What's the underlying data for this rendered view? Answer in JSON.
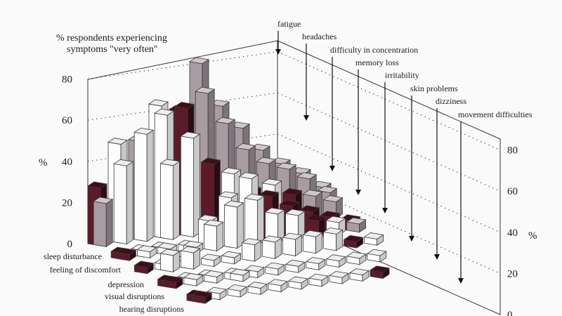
{
  "chart_data": {
    "type": "bar",
    "title": "% respondents  experiencing",
    "subtitle": "symptoms  \"very often\"",
    "ylabel": "%",
    "ylabel_right": "%",
    "ylim": [
      0,
      80
    ],
    "yticks": [
      0,
      20,
      40,
      60,
      80
    ],
    "yticks_right": [
      0,
      20,
      40,
      60,
      80
    ],
    "grid": true,
    "categories": [
      "sleep disturbance",
      "feeling of discomfort",
      "depression",
      "visual disruptions",
      "hearing disruptions"
    ],
    "symptoms": [
      "fatigue",
      "headaches",
      "difficulty in concentration",
      "memory loss",
      "irritability",
      "skin problems",
      "dizziness",
      "movement difficulties"
    ],
    "bars": [
      {
        "group": 0,
        "row": 0,
        "col": 0,
        "value": 28,
        "tone": "dark"
      },
      {
        "group": 0,
        "row": 0,
        "col": 1,
        "value": 21,
        "tone": "gray"
      },
      {
        "group": 0,
        "row": 1,
        "col": 1,
        "value": 3,
        "tone": "dark"
      },
      {
        "group": 0,
        "row": 1,
        "col": 2,
        "value": 3,
        "tone": "dark"
      },
      {
        "group": 0,
        "row": 2,
        "col": 2,
        "value": 3,
        "tone": "dark"
      },
      {
        "group": 0,
        "row": 3,
        "col": 3,
        "value": 3,
        "tone": "dark"
      },
      {
        "group": 0,
        "row": 3,
        "col": 4,
        "value": 3,
        "tone": "dark"
      },
      {
        "group": 0,
        "row": 4,
        "col": 5,
        "value": 3,
        "tone": "dark"
      },
      {
        "group": 0,
        "row": 4,
        "col": 6,
        "value": 3,
        "tone": "dark"
      },
      {
        "group": 1,
        "row": 0,
        "col": 0,
        "value": 48,
        "tone": "white"
      },
      {
        "group": 1,
        "row": 0,
        "col": 1,
        "value": 38,
        "tone": "white"
      },
      {
        "group": 1,
        "row": 1,
        "col": 1,
        "value": 3,
        "tone": "white"
      },
      {
        "group": 1,
        "row": 1,
        "col": 2,
        "value": 3,
        "tone": "white"
      },
      {
        "group": 1,
        "row": 2,
        "col": 2,
        "value": 3,
        "tone": "white"
      },
      {
        "group": 1,
        "row": 2,
        "col": 3,
        "value": 8,
        "tone": "white"
      },
      {
        "group": 1,
        "row": 3,
        "col": 3,
        "value": 3,
        "tone": "white"
      },
      {
        "group": 1,
        "row": 3,
        "col": 4,
        "value": 3,
        "tone": "white"
      },
      {
        "group": 1,
        "row": 4,
        "col": 5,
        "value": 3,
        "tone": "white"
      },
      {
        "group": 2,
        "row": 0,
        "col": 0,
        "value": 48,
        "tone": "gray"
      },
      {
        "group": 2,
        "row": 0,
        "col": 1,
        "value": 52,
        "tone": "white"
      },
      {
        "group": 2,
        "row": 1,
        "col": 1,
        "value": 3,
        "tone": "white"
      },
      {
        "group": 2,
        "row": 1,
        "col": 2,
        "value": 3,
        "tone": "white"
      },
      {
        "group": 2,
        "row": 2,
        "col": 2,
        "value": 3,
        "tone": "white"
      },
      {
        "group": 2,
        "row": 2,
        "col": 3,
        "value": 8,
        "tone": "white"
      },
      {
        "group": 2,
        "row": 3,
        "col": 3,
        "value": 3,
        "tone": "white"
      },
      {
        "group": 2,
        "row": 3,
        "col": 4,
        "value": 3,
        "tone": "white"
      },
      {
        "group": 2,
        "row": 4,
        "col": 5,
        "value": 3,
        "tone": "white"
      },
      {
        "group": 3,
        "row": 0,
        "col": 0,
        "value": 64,
        "tone": "white"
      },
      {
        "group": 3,
        "row": 0,
        "col": 1,
        "value": 60,
        "tone": "white"
      },
      {
        "group": 3,
        "row": 0,
        "col": 2,
        "value": 36,
        "tone": "white"
      },
      {
        "group": 3,
        "row": 1,
        "col": 2,
        "value": 3,
        "tone": "white"
      },
      {
        "group": 3,
        "row": 1,
        "col": 3,
        "value": 3,
        "tone": "white"
      },
      {
        "group": 3,
        "row": 2,
        "col": 3,
        "value": 3,
        "tone": "white"
      },
      {
        "group": 3,
        "row": 3,
        "col": 4,
        "value": 3,
        "tone": "white"
      },
      {
        "group": 3,
        "row": 3,
        "col": 5,
        "value": 3,
        "tone": "white"
      },
      {
        "group": 3,
        "row": 4,
        "col": 5,
        "value": 3,
        "tone": "white"
      },
      {
        "group": 4,
        "row": 0,
        "col": 0,
        "value": 60,
        "tone": "dark"
      },
      {
        "group": 4,
        "row": 0,
        "col": 1,
        "value": 62,
        "tone": "dark"
      },
      {
        "group": 4,
        "row": 0,
        "col": 2,
        "value": 48,
        "tone": "white"
      },
      {
        "group": 4,
        "row": 1,
        "col": 2,
        "value": 14,
        "tone": "white"
      },
      {
        "group": 4,
        "row": 1,
        "col": 3,
        "value": 12,
        "tone": "white"
      },
      {
        "group": 4,
        "row": 2,
        "col": 3,
        "value": 3,
        "tone": "white"
      },
      {
        "group": 4,
        "row": 3,
        "col": 4,
        "value": 3,
        "tone": "white"
      },
      {
        "group": 4,
        "row": 4,
        "col": 5,
        "value": 3,
        "tone": "white"
      },
      {
        "group": 5,
        "row": 0,
        "col": 0,
        "value": 82,
        "tone": "gray"
      },
      {
        "group": 5,
        "row": 0,
        "col": 1,
        "value": 68,
        "tone": "gray"
      },
      {
        "group": 5,
        "row": 0,
        "col": 2,
        "value": 34,
        "tone": "dark"
      },
      {
        "group": 5,
        "row": 1,
        "col": 2,
        "value": 24,
        "tone": "white"
      },
      {
        "group": 5,
        "row": 1,
        "col": 3,
        "value": 20,
        "tone": "white"
      },
      {
        "group": 5,
        "row": 2,
        "col": 3,
        "value": 8,
        "tone": "white"
      },
      {
        "group": 5,
        "row": 3,
        "col": 4,
        "value": 3,
        "tone": "white"
      },
      {
        "group": 5,
        "row": 4,
        "col": 5,
        "value": 3,
        "tone": "white"
      },
      {
        "group": 6,
        "row": 0,
        "col": 0,
        "value": 60,
        "tone": "gray"
      },
      {
        "group": 6,
        "row": 0,
        "col": 1,
        "value": 52,
        "tone": "gray"
      },
      {
        "group": 6,
        "row": 0,
        "col": 2,
        "value": 28,
        "tone": "white"
      },
      {
        "group": 6,
        "row": 1,
        "col": 2,
        "value": 32,
        "tone": "white"
      },
      {
        "group": 6,
        "row": 1,
        "col": 3,
        "value": 22,
        "tone": "white"
      },
      {
        "group": 6,
        "row": 2,
        "col": 3,
        "value": 8,
        "tone": "white"
      },
      {
        "group": 6,
        "row": 3,
        "col": 4,
        "value": 3,
        "tone": "white"
      },
      {
        "group": 6,
        "row": 4,
        "col": 5,
        "value": 3,
        "tone": "white"
      },
      {
        "group": 7,
        "row": 0,
        "col": 0,
        "value": 48,
        "tone": "gray"
      },
      {
        "group": 7,
        "row": 0,
        "col": 1,
        "value": 38,
        "tone": "gray"
      },
      {
        "group": 7,
        "row": 0,
        "col": 2,
        "value": 18,
        "tone": "dark"
      },
      {
        "group": 7,
        "row": 1,
        "col": 2,
        "value": 22,
        "tone": "dark"
      },
      {
        "group": 7,
        "row": 1,
        "col": 3,
        "value": 14,
        "tone": "white"
      },
      {
        "group": 7,
        "row": 2,
        "col": 3,
        "value": 8,
        "tone": "white"
      },
      {
        "group": 7,
        "row": 3,
        "col": 4,
        "value": 3,
        "tone": "white"
      },
      {
        "group": 7,
        "row": 4,
        "col": 5,
        "value": 3,
        "tone": "white"
      },
      {
        "group": 8,
        "row": 0,
        "col": 0,
        "value": 36,
        "tone": "gray"
      },
      {
        "group": 8,
        "row": 0,
        "col": 1,
        "value": 30,
        "tone": "gray"
      },
      {
        "group": 8,
        "row": 0,
        "col": 2,
        "value": 20,
        "tone": "white"
      },
      {
        "group": 8,
        "row": 1,
        "col": 2,
        "value": 16,
        "tone": "dark"
      },
      {
        "group": 8,
        "row": 1,
        "col": 3,
        "value": 12,
        "tone": "white"
      },
      {
        "group": 8,
        "row": 2,
        "col": 3,
        "value": 8,
        "tone": "white"
      },
      {
        "group": 8,
        "row": 3,
        "col": 4,
        "value": 3,
        "tone": "white"
      },
      {
        "group": 8,
        "row": 4,
        "col": 5,
        "value": 3,
        "tone": "white"
      },
      {
        "group": 9,
        "row": 0,
        "col": 0,
        "value": 28,
        "tone": "gray"
      },
      {
        "group": 9,
        "row": 0,
        "col": 1,
        "value": 26,
        "tone": "gray"
      },
      {
        "group": 9,
        "row": 0,
        "col": 2,
        "value": 14,
        "tone": "dark"
      },
      {
        "group": 9,
        "row": 1,
        "col": 2,
        "value": 12,
        "tone": "dark"
      },
      {
        "group": 9,
        "row": 1,
        "col": 3,
        "value": 8,
        "tone": "dark"
      },
      {
        "group": 9,
        "row": 2,
        "col": 3,
        "value": 8,
        "tone": "white"
      },
      {
        "group": 9,
        "row": 3,
        "col": 4,
        "value": 3,
        "tone": "white"
      },
      {
        "group": 9,
        "row": 4,
        "col": 5,
        "value": 3,
        "tone": "dark"
      },
      {
        "group": 10,
        "row": 0,
        "col": 0,
        "value": 22,
        "tone": "gray"
      },
      {
        "group": 10,
        "row": 0,
        "col": 1,
        "value": 20,
        "tone": "gray"
      },
      {
        "group": 10,
        "row": 0,
        "col": 2,
        "value": 12,
        "tone": "gray"
      },
      {
        "group": 10,
        "row": 1,
        "col": 2,
        "value": 8,
        "tone": "dark"
      },
      {
        "group": 10,
        "row": 1,
        "col": 3,
        "value": 6,
        "tone": "white"
      },
      {
        "group": 10,
        "row": 2,
        "col": 3,
        "value": 3,
        "tone": "dark"
      },
      {
        "group": 10,
        "row": 3,
        "col": 4,
        "value": 3,
        "tone": "white"
      },
      {
        "group": 11,
        "row": 0,
        "col": 0,
        "value": 14,
        "tone": "gray"
      },
      {
        "group": 11,
        "row": 0,
        "col": 1,
        "value": 12,
        "tone": "gray"
      },
      {
        "group": 11,
        "row": 0,
        "col": 2,
        "value": 8,
        "tone": "gray"
      },
      {
        "group": 11,
        "row": 1,
        "col": 2,
        "value": 5,
        "tone": "dark"
      },
      {
        "group": 11,
        "row": 1,
        "col": 3,
        "value": 4,
        "tone": "gray"
      },
      {
        "group": 11,
        "row": 2,
        "col": 3,
        "value": 3,
        "tone": "white"
      }
    ],
    "colors": {
      "dark": [
        "#5c1a2a",
        "#3d0f1a",
        "#2e0a13"
      ],
      "gray": [
        "#a89ca2",
        "#cfc6ca",
        "#7e7378"
      ],
      "white": [
        "#fdfdfd",
        "#ededed",
        "#c8c8c8"
      ],
      "line": "#3a3a3a"
    }
  }
}
